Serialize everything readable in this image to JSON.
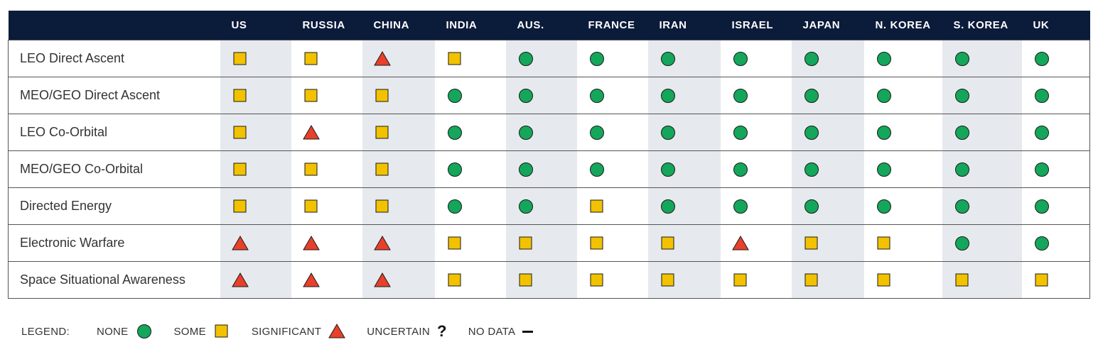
{
  "chart_data": {
    "type": "table",
    "columns": [
      "US",
      "RUSSIA",
      "CHINA",
      "INDIA",
      "AUS.",
      "FRANCE",
      "IRAN",
      "ISRAEL",
      "JAPAN",
      "N. KOREA",
      "S. KOREA",
      "UK"
    ],
    "rows": [
      {
        "label": "LEO Direct Ascent",
        "values": [
          "some",
          "some",
          "significant",
          "some",
          "none",
          "none",
          "none",
          "none",
          "none",
          "none",
          "none",
          "none"
        ]
      },
      {
        "label": "MEO/GEO Direct Ascent",
        "values": [
          "some",
          "some",
          "some",
          "none",
          "none",
          "none",
          "none",
          "none",
          "none",
          "none",
          "none",
          "none"
        ]
      },
      {
        "label": "LEO Co-Orbital",
        "values": [
          "some",
          "significant",
          "some",
          "none",
          "none",
          "none",
          "none",
          "none",
          "none",
          "none",
          "none",
          "none"
        ]
      },
      {
        "label": "MEO/GEO Co-Orbital",
        "values": [
          "some",
          "some",
          "some",
          "none",
          "none",
          "none",
          "none",
          "none",
          "none",
          "none",
          "none",
          "none"
        ]
      },
      {
        "label": "Directed Energy",
        "values": [
          "some",
          "some",
          "some",
          "none",
          "none",
          "some",
          "none",
          "none",
          "none",
          "none",
          "none",
          "none"
        ]
      },
      {
        "label": "Electronic Warfare",
        "values": [
          "significant",
          "significant",
          "significant",
          "some",
          "some",
          "some",
          "some",
          "significant",
          "some",
          "some",
          "none",
          "none"
        ]
      },
      {
        "label": "Space Situational Awareness",
        "values": [
          "significant",
          "significant",
          "significant",
          "some",
          "some",
          "some",
          "some",
          "some",
          "some",
          "some",
          "some",
          "some"
        ]
      }
    ],
    "legend": {
      "title": "LEGEND:",
      "items": [
        {
          "key": "none",
          "label": "NONE"
        },
        {
          "key": "some",
          "label": "SOME"
        },
        {
          "key": "significant",
          "label": "SIGNIFICANT"
        },
        {
          "key": "uncertain",
          "label": "UNCERTAIN"
        },
        {
          "key": "nodata",
          "label": "NO DATA"
        }
      ]
    },
    "colors": {
      "none": "#14a65a",
      "some": "#f2c200",
      "significant": "#e8402a",
      "header_bg": "#0b1b3a",
      "shade": "#e6e9ee"
    },
    "shaded_columns": [
      "US",
      "CHINA",
      "AUS.",
      "IRAN",
      "JAPAN",
      "S. KOREA"
    ]
  }
}
